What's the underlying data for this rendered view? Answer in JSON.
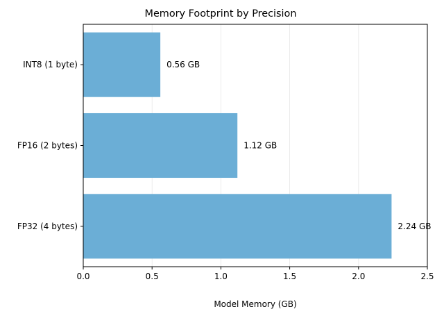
{
  "chart_data": {
    "type": "bar",
    "orientation": "horizontal",
    "title": "Memory Footprint by Precision",
    "xlabel": "Model Memory (GB)",
    "ylabel": "",
    "categories": [
      "INT8 (1 byte)",
      "FP16 (2 bytes)",
      "FP32 (4 bytes)"
    ],
    "values": [
      0.56,
      1.12,
      2.24
    ],
    "data_labels": [
      "0.56 GB",
      "1.12 GB",
      "2.24 GB"
    ],
    "xlim": [
      0,
      2.5
    ],
    "xticks": [
      0,
      0.5,
      1.0,
      1.5,
      2.0,
      2.5
    ],
    "xtick_labels": [
      "0.0",
      "0.5",
      "1.0",
      "1.5",
      "2.0",
      "2.5"
    ],
    "grid": "x",
    "bar_color": "#6baed6"
  }
}
